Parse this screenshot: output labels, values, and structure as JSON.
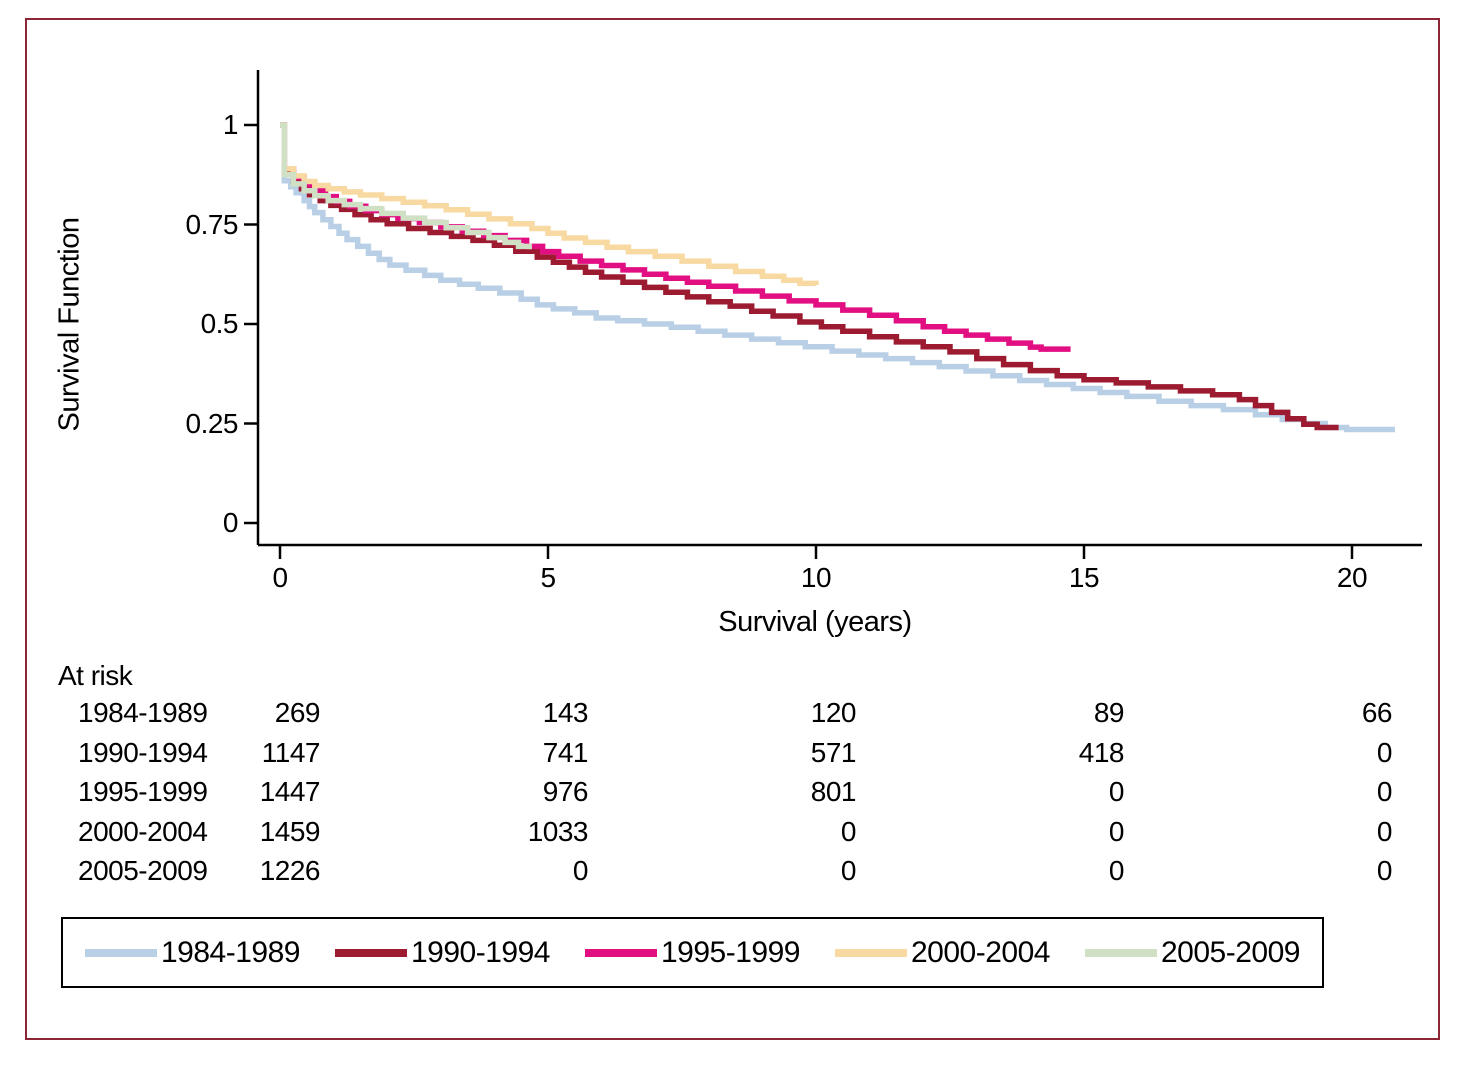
{
  "figure": {
    "border_color": "#8c2637",
    "background": "#ffffff"
  },
  "chart_data": {
    "type": "line",
    "subtype": "kaplan-meier-step",
    "title": "",
    "xlabel": "Survival (years)",
    "ylabel": "Survival Function",
    "xlim": [
      0,
      21.5
    ],
    "ylim": [
      0,
      1.05
    ],
    "grid": false,
    "legend_position": "bottom-boxed",
    "axis_color": "#000000",
    "xticks": [
      {
        "value": 0,
        "label": "0"
      },
      {
        "value": 5,
        "label": "5"
      },
      {
        "value": 10,
        "label": "10"
      },
      {
        "value": 15,
        "label": "15"
      },
      {
        "value": 20,
        "label": "20"
      }
    ],
    "yticks": [
      {
        "value": 0,
        "label": "0"
      },
      {
        "value": 0.25,
        "label": "0.25"
      },
      {
        "value": 0.5,
        "label": "0.5"
      },
      {
        "value": 0.75,
        "label": "0.75"
      },
      {
        "value": 1,
        "label": "1"
      }
    ],
    "series": [
      {
        "name": "1984-1989",
        "color": "#b9cfe6",
        "points": [
          [
            0,
            1.0
          ],
          [
            0.08,
            0.86
          ],
          [
            0.2,
            0.845
          ],
          [
            0.3,
            0.83
          ],
          [
            0.45,
            0.81
          ],
          [
            0.55,
            0.795
          ],
          [
            0.65,
            0.78
          ],
          [
            0.8,
            0.762
          ],
          [
            0.95,
            0.745
          ],
          [
            1.1,
            0.728
          ],
          [
            1.25,
            0.712
          ],
          [
            1.45,
            0.695
          ],
          [
            1.65,
            0.678
          ],
          [
            1.85,
            0.662
          ],
          [
            2.05,
            0.648
          ],
          [
            2.35,
            0.635
          ],
          [
            2.7,
            0.622
          ],
          [
            3.0,
            0.61
          ],
          [
            3.35,
            0.6
          ],
          [
            3.7,
            0.59
          ],
          [
            4.1,
            0.578
          ],
          [
            4.5,
            0.562
          ],
          [
            4.8,
            0.548
          ],
          [
            5.1,
            0.538
          ],
          [
            5.5,
            0.528
          ],
          [
            5.9,
            0.515
          ],
          [
            6.3,
            0.508
          ],
          [
            6.8,
            0.5
          ],
          [
            7.3,
            0.492
          ],
          [
            7.8,
            0.482
          ],
          [
            8.3,
            0.472
          ],
          [
            8.8,
            0.462
          ],
          [
            9.3,
            0.453
          ],
          [
            9.8,
            0.443
          ],
          [
            10.3,
            0.432
          ],
          [
            10.8,
            0.422
          ],
          [
            11.3,
            0.413
          ],
          [
            11.8,
            0.403
          ],
          [
            12.3,
            0.393
          ],
          [
            12.8,
            0.382
          ],
          [
            13.3,
            0.37
          ],
          [
            13.8,
            0.358
          ],
          [
            14.3,
            0.348
          ],
          [
            14.8,
            0.338
          ],
          [
            15.3,
            0.328
          ],
          [
            15.8,
            0.318
          ],
          [
            16.4,
            0.306
          ],
          [
            17.0,
            0.295
          ],
          [
            17.6,
            0.285
          ],
          [
            18.2,
            0.272
          ],
          [
            18.7,
            0.26
          ],
          [
            19.1,
            0.25
          ],
          [
            19.5,
            0.24
          ],
          [
            19.9,
            0.235
          ],
          [
            20.8,
            0.235
          ]
        ]
      },
      {
        "name": "1990-1994",
        "color": "#9c1b31",
        "points": [
          [
            0,
            1.0
          ],
          [
            0.08,
            0.88
          ],
          [
            0.25,
            0.858
          ],
          [
            0.4,
            0.84
          ],
          [
            0.55,
            0.825
          ],
          [
            0.75,
            0.81
          ],
          [
            0.95,
            0.798
          ],
          [
            1.15,
            0.788
          ],
          [
            1.4,
            0.775
          ],
          [
            1.7,
            0.762
          ],
          [
            2.0,
            0.752
          ],
          [
            2.4,
            0.74
          ],
          [
            2.8,
            0.73
          ],
          [
            3.2,
            0.72
          ],
          [
            3.6,
            0.71
          ],
          [
            4.0,
            0.698
          ],
          [
            4.4,
            0.683
          ],
          [
            4.8,
            0.668
          ],
          [
            5.1,
            0.655
          ],
          [
            5.4,
            0.643
          ],
          [
            5.7,
            0.63
          ],
          [
            6.0,
            0.618
          ],
          [
            6.4,
            0.605
          ],
          [
            6.8,
            0.592
          ],
          [
            7.2,
            0.58
          ],
          [
            7.6,
            0.568
          ],
          [
            8.0,
            0.556
          ],
          [
            8.4,
            0.545
          ],
          [
            8.8,
            0.532
          ],
          [
            9.2,
            0.52
          ],
          [
            9.7,
            0.505
          ],
          [
            10.1,
            0.493
          ],
          [
            10.5,
            0.482
          ],
          [
            11.0,
            0.468
          ],
          [
            11.5,
            0.455
          ],
          [
            12.0,
            0.443
          ],
          [
            12.5,
            0.43
          ],
          [
            13.0,
            0.413
          ],
          [
            13.5,
            0.398
          ],
          [
            14.0,
            0.383
          ],
          [
            14.5,
            0.37
          ],
          [
            15.0,
            0.36
          ],
          [
            15.6,
            0.352
          ],
          [
            16.2,
            0.342
          ],
          [
            16.8,
            0.332
          ],
          [
            17.4,
            0.322
          ],
          [
            17.9,
            0.31
          ],
          [
            18.2,
            0.295
          ],
          [
            18.5,
            0.278
          ],
          [
            18.8,
            0.262
          ],
          [
            19.1,
            0.248
          ],
          [
            19.35,
            0.24
          ],
          [
            19.75,
            0.24
          ]
        ]
      },
      {
        "name": "1995-1999",
        "color": "#e20f82",
        "points": [
          [
            0,
            1.0
          ],
          [
            0.08,
            0.89
          ],
          [
            0.25,
            0.868
          ],
          [
            0.45,
            0.85
          ],
          [
            0.65,
            0.835
          ],
          [
            0.85,
            0.82
          ],
          [
            1.05,
            0.808
          ],
          [
            1.3,
            0.796
          ],
          [
            1.6,
            0.785
          ],
          [
            1.9,
            0.775
          ],
          [
            2.2,
            0.765
          ],
          [
            2.6,
            0.755
          ],
          [
            3.0,
            0.744
          ],
          [
            3.4,
            0.733
          ],
          [
            3.8,
            0.722
          ],
          [
            4.2,
            0.71
          ],
          [
            4.6,
            0.695
          ],
          [
            4.9,
            0.682
          ],
          [
            5.2,
            0.67
          ],
          [
            5.6,
            0.658
          ],
          [
            6.0,
            0.647
          ],
          [
            6.4,
            0.636
          ],
          [
            6.8,
            0.625
          ],
          [
            7.2,
            0.615
          ],
          [
            7.6,
            0.605
          ],
          [
            8.0,
            0.595
          ],
          [
            8.5,
            0.583
          ],
          [
            9.0,
            0.57
          ],
          [
            9.5,
            0.558
          ],
          [
            10.0,
            0.548
          ],
          [
            10.5,
            0.535
          ],
          [
            11.0,
            0.522
          ],
          [
            11.5,
            0.508
          ],
          [
            12.0,
            0.493
          ],
          [
            12.4,
            0.482
          ],
          [
            12.8,
            0.472
          ],
          [
            13.2,
            0.462
          ],
          [
            13.6,
            0.452
          ],
          [
            14.0,
            0.442
          ],
          [
            14.2,
            0.437
          ],
          [
            14.75,
            0.437
          ]
        ]
      },
      {
        "name": "2000-2004",
        "color": "#f8d9a2",
        "points": [
          [
            0,
            1.0
          ],
          [
            0.08,
            0.89
          ],
          [
            0.25,
            0.872
          ],
          [
            0.45,
            0.858
          ],
          [
            0.65,
            0.848
          ],
          [
            0.9,
            0.84
          ],
          [
            1.2,
            0.832
          ],
          [
            1.5,
            0.824
          ],
          [
            1.9,
            0.815
          ],
          [
            2.3,
            0.806
          ],
          [
            2.7,
            0.797
          ],
          [
            3.1,
            0.787
          ],
          [
            3.5,
            0.776
          ],
          [
            3.9,
            0.764
          ],
          [
            4.3,
            0.752
          ],
          [
            4.7,
            0.74
          ],
          [
            5.0,
            0.728
          ],
          [
            5.3,
            0.716
          ],
          [
            5.7,
            0.705
          ],
          [
            6.1,
            0.693
          ],
          [
            6.5,
            0.682
          ],
          [
            7.0,
            0.67
          ],
          [
            7.5,
            0.658
          ],
          [
            8.0,
            0.645
          ],
          [
            8.5,
            0.632
          ],
          [
            9.0,
            0.62
          ],
          [
            9.4,
            0.61
          ],
          [
            9.7,
            0.602
          ],
          [
            10.0,
            0.598
          ]
        ]
      },
      {
        "name": "2005-2009",
        "color": "#d0e0c5",
        "points": [
          [
            0,
            1.0
          ],
          [
            0.08,
            0.875
          ],
          [
            0.25,
            0.852
          ],
          [
            0.45,
            0.835
          ],
          [
            0.65,
            0.822
          ],
          [
            0.9,
            0.81
          ],
          [
            1.2,
            0.8
          ],
          [
            1.5,
            0.79
          ],
          [
            1.9,
            0.778
          ],
          [
            2.3,
            0.766
          ],
          [
            2.7,
            0.755
          ],
          [
            3.1,
            0.742
          ],
          [
            3.5,
            0.73
          ],
          [
            3.9,
            0.717
          ],
          [
            4.2,
            0.705
          ],
          [
            4.45,
            0.695
          ],
          [
            4.65,
            0.688
          ]
        ]
      }
    ],
    "at_risk": {
      "label": "At risk",
      "time_points": [
        0,
        5,
        10,
        15,
        20
      ],
      "rows": [
        {
          "name": "1984-1989",
          "values": [
            "269",
            "143",
            "120",
            "89",
            "66"
          ]
        },
        {
          "name": "1990-1994",
          "values": [
            "1147",
            "741",
            "571",
            "418",
            "0"
          ]
        },
        {
          "name": "1995-1999",
          "values": [
            "1447",
            "976",
            "801",
            "0",
            "0"
          ]
        },
        {
          "name": "2000-2004",
          "values": [
            "1459",
            "1033",
            "0",
            "0",
            "0"
          ]
        },
        {
          "name": "2005-2009",
          "values": [
            "1226",
            "0",
            "0",
            "0",
            "0"
          ]
        }
      ]
    },
    "legend": [
      {
        "label": "1984-1989",
        "color": "#b9cfe6"
      },
      {
        "label": "1990-1994",
        "color": "#9c1b31"
      },
      {
        "label": "1995-1999",
        "color": "#e20f82"
      },
      {
        "label": "2000-2004",
        "color": "#f8d9a2"
      },
      {
        "label": "2005-2009",
        "color": "#d0e0c5"
      }
    ]
  }
}
